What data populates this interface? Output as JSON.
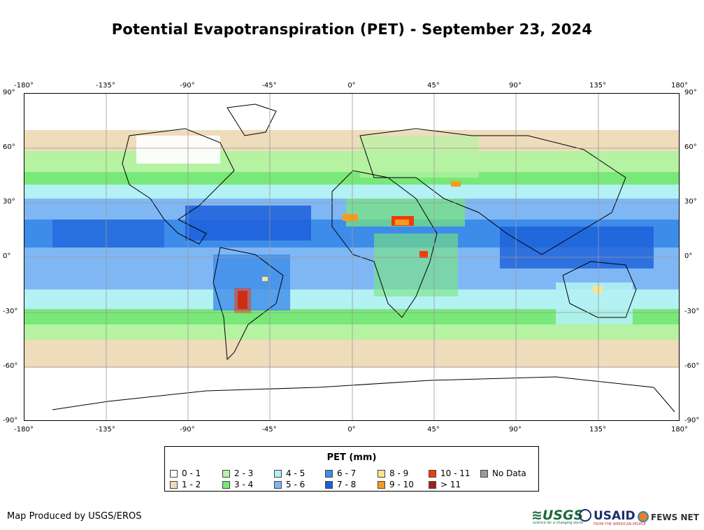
{
  "title": "Potential Evapotranspiration (PET) - September 23, 2024",
  "map": {
    "lon_range": [
      -180,
      180
    ],
    "lat_range": [
      -90,
      90
    ],
    "lon_ticks": [
      "-180°",
      "-135°",
      "-90°",
      "-45°",
      "0°",
      "45°",
      "90°",
      "135°",
      "180°"
    ],
    "lat_ticks": [
      "90°",
      "60°",
      "30°",
      "0°",
      "-30°",
      "-60°",
      "-90°"
    ],
    "grid": true
  },
  "legend": {
    "title": "PET (mm)",
    "items": [
      {
        "label": "0 - 1",
        "color": "#ffffff"
      },
      {
        "label": "1 - 2",
        "color": "#eedcbb"
      },
      {
        "label": "2 - 3",
        "color": "#b5f2a2"
      },
      {
        "label": "3 - 4",
        "color": "#78e878"
      },
      {
        "label": "4 - 5",
        "color": "#b3f1f4"
      },
      {
        "label": "5 - 6",
        "color": "#7fb7f4"
      },
      {
        "label": "6 - 7",
        "color": "#3d8cea"
      },
      {
        "label": "7 - 8",
        "color": "#1c5fd9"
      },
      {
        "label": "8 - 9",
        "color": "#fbe48a"
      },
      {
        "label": "9 - 10",
        "color": "#f79a1e"
      },
      {
        "label": "10 - 11",
        "color": "#ef3b0f"
      },
      {
        "label": "> 11",
        "color": "#a51d1d"
      },
      {
        "label": "No Data",
        "color": "#999999"
      }
    ]
  },
  "footer": {
    "producer": "Map Produced by USGS/EROS",
    "logos": {
      "usgs": "≋USGS",
      "usgs_tagline": "science for a changing world",
      "usaid": "USAID",
      "usaid_tagline": "FROM THE AMERICAN PEOPLE",
      "fews": "FEWS NET"
    }
  }
}
